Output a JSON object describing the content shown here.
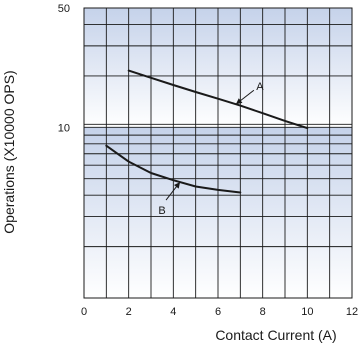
{
  "chart_data": {
    "type": "line",
    "xlabel": "Contact Current (A)",
    "ylabel": "Operations (X10000 OPS)",
    "xlim": [
      0,
      12
    ],
    "ylim": [
      1,
      50
    ],
    "y_scale": "log",
    "x_ticks": [
      "0",
      "2",
      "4",
      "6",
      "8",
      "10",
      "12"
    ],
    "y_ticks": [
      {
        "value": 50,
        "label": "50"
      },
      {
        "value": 10,
        "label": "10"
      }
    ],
    "grid": true,
    "colors": {
      "band_top": "#c5d2ea",
      "band_bottom": "#ffffff",
      "line": "#1a1a1a",
      "grid": "#1a1a1a"
    },
    "series": [
      {
        "name": "A",
        "x": [
          2,
          3,
          4,
          5,
          6,
          7,
          8,
          9,
          10
        ],
        "y": [
          21.5,
          19.5,
          17.7,
          16.1,
          14.7,
          13.4,
          12.1,
          10.9,
          9.9
        ]
      },
      {
        "name": "B",
        "x": [
          1,
          1.5,
          2,
          3,
          4,
          5,
          6,
          7
        ],
        "y": [
          7.8,
          7,
          6.3,
          5.4,
          4.9,
          4.5,
          4.3,
          4.15
        ]
      }
    ],
    "annotations": [
      {
        "label": "A",
        "series": "A",
        "x": 6.8
      },
      {
        "label": "B",
        "series": "B",
        "x": 4.3
      }
    ]
  }
}
